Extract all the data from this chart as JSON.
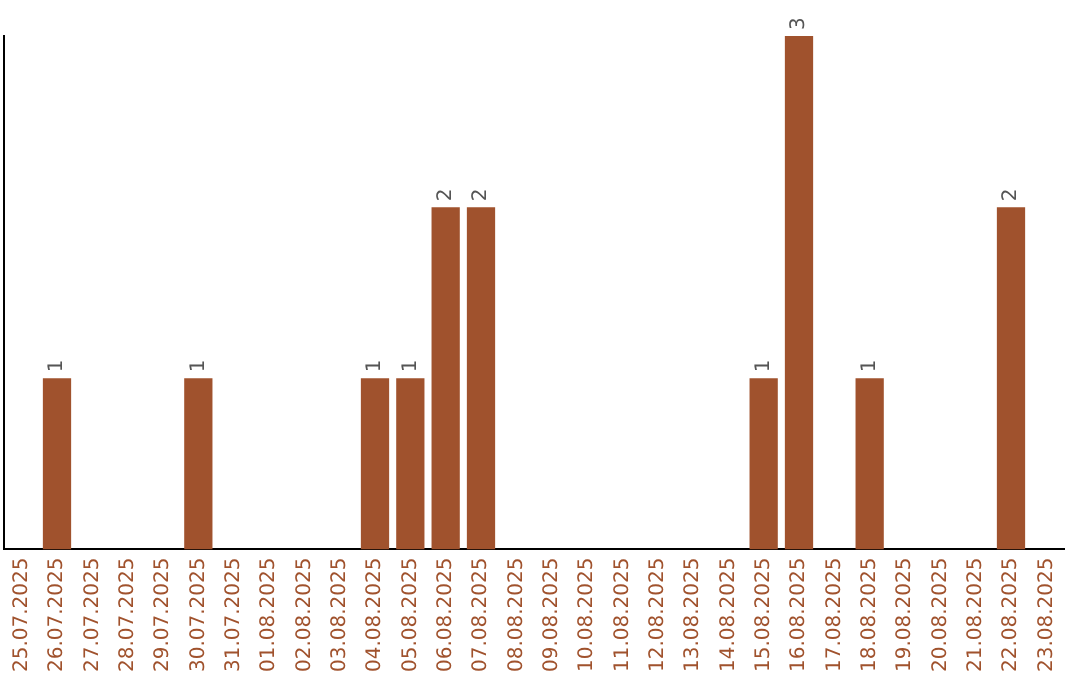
{
  "chart_data": {
    "type": "bar",
    "categories": [
      "25.07.2025",
      "26.07.2025",
      "27.07.2025",
      "28.07.2025",
      "29.07.2025",
      "30.07.2025",
      "31.07.2025",
      "01.08.2025",
      "02.08.2025",
      "03.08.2025",
      "04.08.2025",
      "05.08.2025",
      "06.08.2025",
      "07.08.2025",
      "08.08.2025",
      "09.08.2025",
      "10.08.2025",
      "11.08.2025",
      "12.08.2025",
      "13.08.2025",
      "14.08.2025",
      "15.08.2025",
      "16.08.2025",
      "17.08.2025",
      "18.08.2025",
      "19.08.2025",
      "20.08.2025",
      "21.08.2025",
      "22.08.2025",
      "23.08.2025"
    ],
    "values": [
      0,
      1,
      0,
      0,
      0,
      1,
      0,
      0,
      0,
      0,
      1,
      1,
      2,
      2,
      0,
      0,
      0,
      0,
      0,
      0,
      0,
      1,
      3,
      0,
      1,
      0,
      0,
      0,
      2,
      0
    ],
    "value_labels": [
      null,
      "1",
      null,
      null,
      null,
      "1",
      null,
      null,
      null,
      null,
      "1",
      "1",
      "2",
      "2",
      null,
      null,
      null,
      null,
      null,
      null,
      null,
      "1",
      "3",
      null,
      "1",
      null,
      null,
      null,
      "2",
      null
    ],
    "color": "#a0522d",
    "grid": false,
    "legend": false,
    "tick_labels": "x"
  }
}
